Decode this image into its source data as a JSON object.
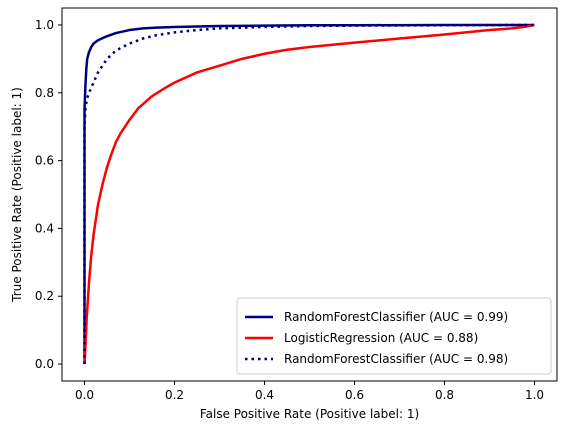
{
  "chart_data": {
    "type": "line",
    "xlabel": "False Positive Rate (Positive label: 1)",
    "ylabel": "True Positive Rate (Positive label: 1)",
    "xlim": [
      -0.05,
      1.05
    ],
    "ylim": [
      -0.05,
      1.05
    ],
    "xticks": [
      0.0,
      0.2,
      0.4,
      0.6,
      0.8,
      1.0
    ],
    "yticks": [
      0.0,
      0.2,
      0.4,
      0.6,
      0.8,
      1.0
    ],
    "xtick_labels": [
      "0.0",
      "0.2",
      "0.4",
      "0.6",
      "0.8",
      "1.0"
    ],
    "ytick_labels": [
      "0.0",
      "0.2",
      "0.4",
      "0.6",
      "0.8",
      "1.0"
    ],
    "grid": false,
    "legend_position": "lower-right",
    "series": [
      {
        "name": "RandomForestClassifier (AUC = 0.99)",
        "color": "#00007f",
        "style": "solid",
        "x": [
          0,
          0,
          0.002,
          0.004,
          0.006,
          0.01,
          0.015,
          0.02,
          0.03,
          0.05,
          0.07,
          0.1,
          0.13,
          0.16,
          0.2,
          0.3,
          0.4,
          0.5,
          0.6,
          0.8,
          1.0
        ],
        "y": [
          0,
          0.75,
          0.82,
          0.87,
          0.9,
          0.92,
          0.935,
          0.945,
          0.955,
          0.967,
          0.976,
          0.985,
          0.99,
          0.992,
          0.994,
          0.997,
          0.998,
          0.999,
          0.999,
          1.0,
          1.0
        ]
      },
      {
        "name": "LogisticRegression (AUC = 0.88)",
        "color": "#ff0000",
        "style": "solid",
        "x": [
          0,
          0.002,
          0.005,
          0.01,
          0.015,
          0.02,
          0.03,
          0.04,
          0.05,
          0.06,
          0.07,
          0.08,
          0.1,
          0.12,
          0.15,
          0.18,
          0.2,
          0.25,
          0.3,
          0.35,
          0.4,
          0.45,
          0.5,
          0.6,
          0.7,
          0.8,
          0.9,
          0.95,
          0.98,
          1.0
        ],
        "y": [
          0,
          0.05,
          0.14,
          0.24,
          0.32,
          0.38,
          0.47,
          0.53,
          0.58,
          0.62,
          0.655,
          0.68,
          0.72,
          0.755,
          0.79,
          0.815,
          0.83,
          0.86,
          0.88,
          0.9,
          0.915,
          0.927,
          0.935,
          0.948,
          0.96,
          0.972,
          0.985,
          0.99,
          0.995,
          1.0
        ]
      },
      {
        "name": "RandomForestClassifier (AUC = 0.98)",
        "color": "#00007f",
        "style": "dotted",
        "x": [
          0,
          0,
          0.002,
          0.005,
          0.01,
          0.02,
          0.03,
          0.05,
          0.07,
          0.1,
          0.13,
          0.16,
          0.2,
          0.25,
          0.3,
          0.4,
          0.5,
          0.6,
          0.8,
          1.0
        ],
        "y": [
          0,
          0.7,
          0.75,
          0.78,
          0.8,
          0.83,
          0.86,
          0.9,
          0.925,
          0.945,
          0.96,
          0.97,
          0.978,
          0.985,
          0.99,
          0.994,
          0.997,
          0.998,
          0.999,
          1.0
        ]
      }
    ]
  }
}
